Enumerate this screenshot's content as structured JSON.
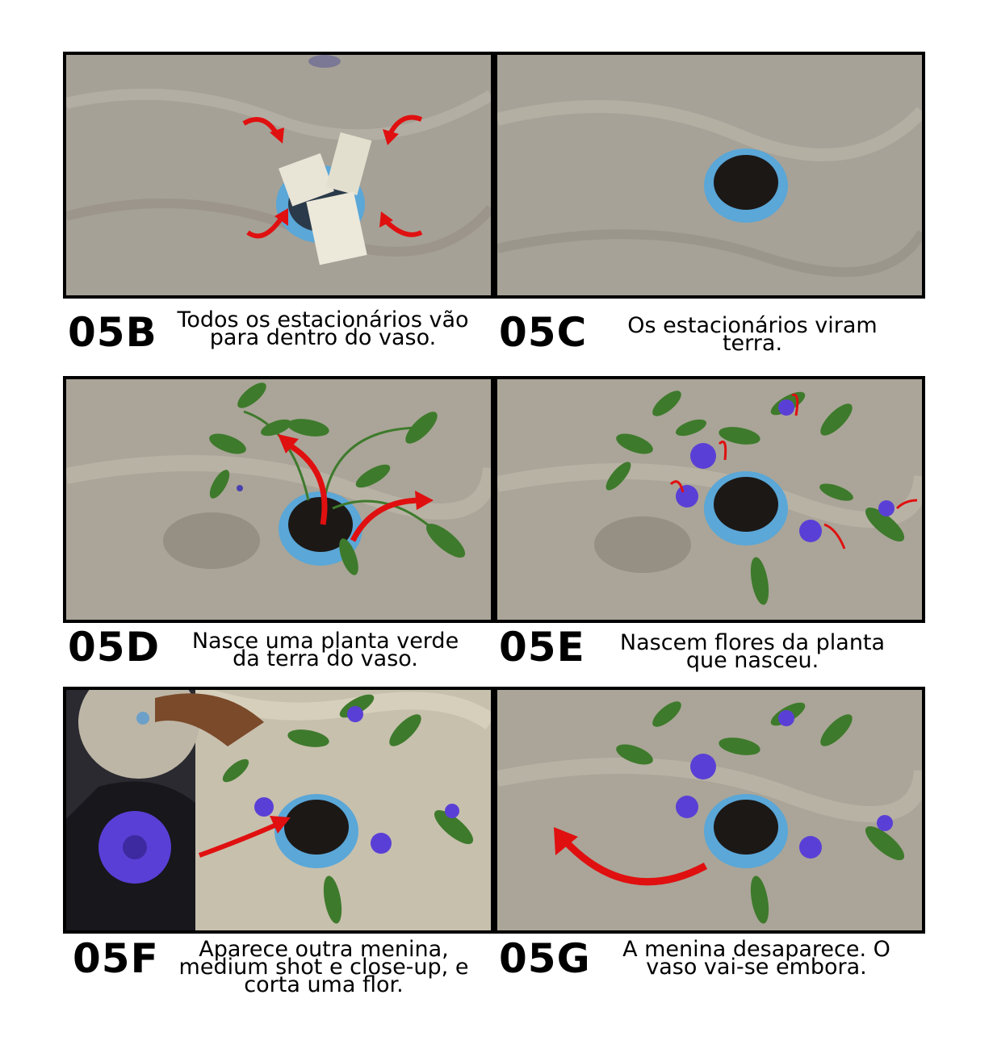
{
  "panels": [
    {
      "code": "05B",
      "caption_lines": [
        "Todos os estacionários vão",
        "para dentro do vaso."
      ]
    },
    {
      "code": "05C",
      "caption_lines": [
        "Os estacionários viram",
        "terra."
      ]
    },
    {
      "code": "05D",
      "caption_lines": [
        "Nasce uma planta verde",
        "da terra do vaso."
      ]
    },
    {
      "code": "05E",
      "caption_lines": [
        "Nascem flores da planta",
        "que nasceu."
      ]
    },
    {
      "code": "05F",
      "caption_lines": [
        "Aparece outra menina,",
        "medium shot e close-up, e",
        "corta uma flor."
      ]
    },
    {
      "code": "05G",
      "caption_lines": [
        "A menina desaparece. O",
        "vaso vai-se embora."
      ]
    }
  ],
  "colors": {
    "arrow": "#e01010",
    "pot": "#5aa7d8",
    "soil": "#1c1816",
    "leaf": "#3e7a2c",
    "flower": "#5a3fd6",
    "cloth": "#b9b3a6"
  }
}
